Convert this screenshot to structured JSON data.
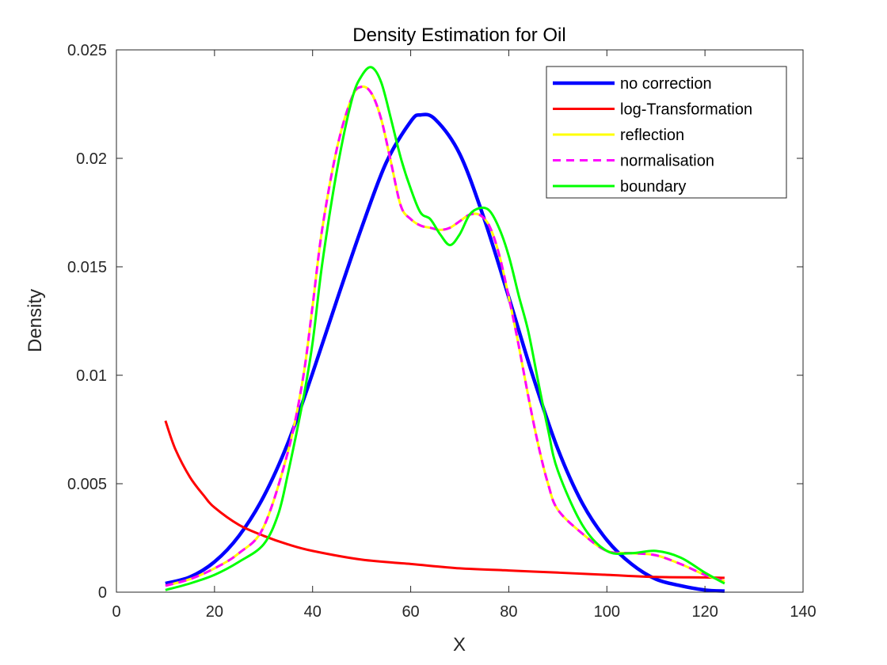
{
  "chart_data": {
    "type": "line",
    "title": "Density Estimation for Oil",
    "xlabel": "X",
    "ylabel": "Density",
    "xlim": [
      0,
      140
    ],
    "ylim": [
      0,
      0.025
    ],
    "xticks": [
      "0",
      "20",
      "40",
      "60",
      "80",
      "100",
      "120",
      "140"
    ],
    "yticks": [
      "0",
      "0.005",
      "0.01",
      "0.015",
      "0.02",
      "0.025"
    ],
    "grid": false,
    "legend_position": "top-right",
    "series": [
      {
        "name": "no correction",
        "color": "#0000ff",
        "style": "solid",
        "width": "thick",
        "x": [
          10,
          15,
          20,
          25,
          30,
          35,
          40,
          45,
          50,
          55,
          60,
          62,
          65,
          70,
          75,
          80,
          85,
          90,
          95,
          100,
          105,
          110,
          115,
          120,
          124
        ],
        "y": [
          0.0004,
          0.0007,
          0.0014,
          0.0026,
          0.0044,
          0.0069,
          0.0101,
          0.0135,
          0.0168,
          0.0198,
          0.0217,
          0.022,
          0.0218,
          0.0202,
          0.0172,
          0.0136,
          0.0099,
          0.0066,
          0.0041,
          0.0024,
          0.0013,
          0.0006,
          0.0003,
          0.0001,
          5e-05
        ]
      },
      {
        "name": "log-Transformation",
        "color": "#ff0000",
        "style": "solid",
        "width": "normal",
        "x": [
          10,
          12,
          15,
          18,
          20,
          25,
          30,
          35,
          40,
          50,
          60,
          70,
          80,
          90,
          100,
          110,
          120,
          124
        ],
        "y": [
          0.0079,
          0.0066,
          0.0053,
          0.0044,
          0.0039,
          0.0031,
          0.0026,
          0.0022,
          0.0019,
          0.0015,
          0.0013,
          0.0011,
          0.001,
          0.0009,
          0.0008,
          0.0007,
          0.00068,
          0.00066
        ]
      },
      {
        "name": "reflection",
        "color": "#ffff00",
        "style": "solid",
        "width": "normal",
        "x": [
          10,
          15,
          20,
          25,
          30,
          35,
          38,
          40,
          42,
          45,
          48,
          50,
          52,
          54,
          56,
          58,
          60,
          62,
          64,
          66,
          68,
          70,
          72,
          74,
          76,
          78,
          80,
          82,
          84,
          86,
          88,
          90,
          95,
          100,
          105,
          110,
          115,
          120,
          124
        ],
        "y": [
          0.0003,
          0.0006,
          0.0011,
          0.0018,
          0.003,
          0.0065,
          0.0098,
          0.0132,
          0.0168,
          0.0205,
          0.0228,
          0.0233,
          0.023,
          0.0218,
          0.0198,
          0.0178,
          0.0172,
          0.0169,
          0.0168,
          0.0167,
          0.0168,
          0.0171,
          0.0174,
          0.0174,
          0.0169,
          0.0156,
          0.0136,
          0.0114,
          0.009,
          0.0068,
          0.005,
          0.0038,
          0.0027,
          0.0019,
          0.0018,
          0.0017,
          0.0013,
          0.0008,
          0.0005
        ]
      },
      {
        "name": "normalisation",
        "color": "#ff00ff",
        "style": "dashed",
        "width": "normal",
        "x": [
          10,
          15,
          20,
          25,
          30,
          35,
          38,
          40,
          42,
          45,
          48,
          50,
          52,
          54,
          56,
          58,
          60,
          62,
          64,
          66,
          68,
          70,
          72,
          74,
          76,
          78,
          80,
          82,
          84,
          86,
          88,
          90,
          95,
          100,
          105,
          110,
          115,
          120,
          124
        ],
        "y": [
          0.0003,
          0.0006,
          0.0011,
          0.0018,
          0.003,
          0.0065,
          0.0098,
          0.0132,
          0.0168,
          0.0205,
          0.0228,
          0.0233,
          0.023,
          0.0218,
          0.0198,
          0.0178,
          0.0172,
          0.0169,
          0.0168,
          0.0167,
          0.0168,
          0.0171,
          0.0174,
          0.0174,
          0.0169,
          0.0156,
          0.0136,
          0.0114,
          0.009,
          0.0068,
          0.005,
          0.0038,
          0.0027,
          0.0019,
          0.0018,
          0.0017,
          0.0013,
          0.0008,
          0.0005
        ]
      },
      {
        "name": "boundary",
        "color": "#00ff00",
        "style": "solid",
        "width": "normal",
        "x": [
          10,
          15,
          20,
          25,
          30,
          33,
          35,
          38,
          40,
          42,
          45,
          48,
          50,
          52,
          54,
          56,
          58,
          60,
          62,
          64,
          66,
          68,
          70,
          72,
          74,
          76,
          78,
          80,
          82,
          84,
          86,
          88,
          90,
          95,
          100,
          105,
          110,
          115,
          120,
          124
        ],
        "y": [
          0.0001,
          0.0004,
          0.0008,
          0.0014,
          0.0022,
          0.0036,
          0.0055,
          0.0088,
          0.0115,
          0.0152,
          0.0195,
          0.0227,
          0.0238,
          0.0242,
          0.0235,
          0.0218,
          0.02,
          0.0186,
          0.0175,
          0.0172,
          0.0165,
          0.016,
          0.0165,
          0.0174,
          0.0177,
          0.0176,
          0.0168,
          0.0155,
          0.0137,
          0.012,
          0.0097,
          0.0075,
          0.0056,
          0.0031,
          0.0019,
          0.0018,
          0.0019,
          0.0016,
          0.0009,
          0.0004
        ]
      }
    ]
  }
}
